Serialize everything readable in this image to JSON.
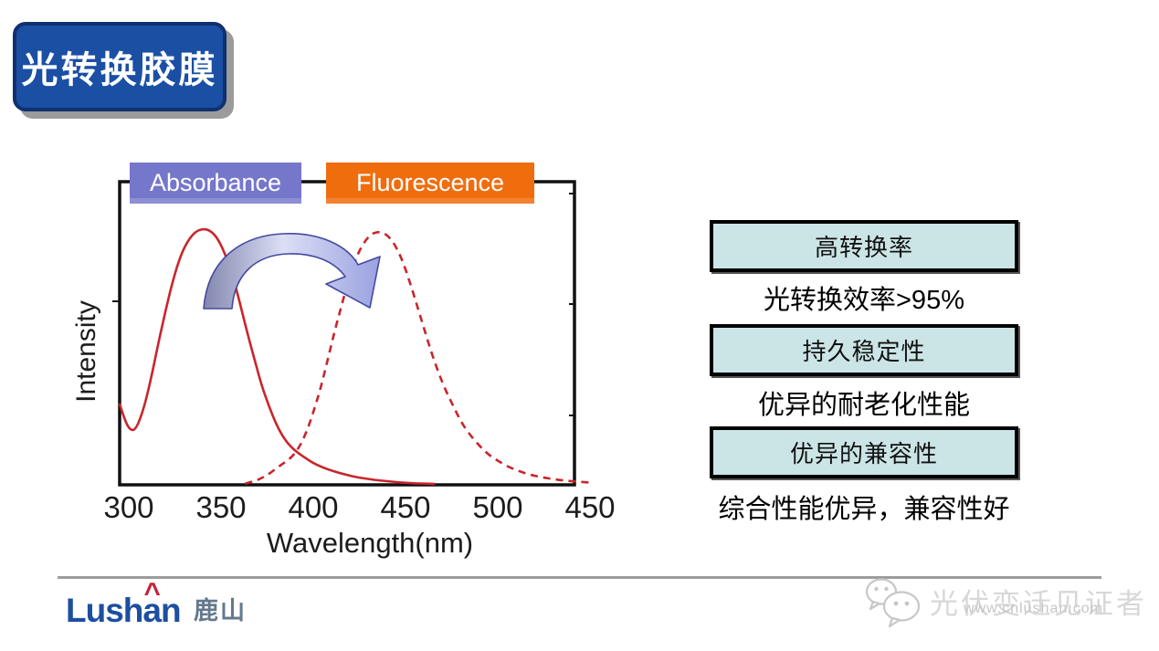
{
  "slide": {
    "title_badge": "光转换胶膜"
  },
  "chart_data": {
    "type": "line",
    "title": "",
    "xlabel": "Wavelength(nm)",
    "ylabel": "Intensity",
    "xticks": [
      "300",
      "350",
      "400",
      "450",
      "500",
      "450"
    ],
    "x_axis_note": "ticks evenly spaced, 50 nm apart starting at 300 nm; last printed label reads 450",
    "ylim": [
      0,
      1
    ],
    "grid": false,
    "legend_position": "top, overlapping frame",
    "legend": [
      {
        "label": "Absorbance",
        "bg": "#7577cb",
        "text": "#ffffff"
      },
      {
        "label": "Fluorescence",
        "bg": "#f06d0d",
        "text": "#ffffff"
      }
    ],
    "curve_color": "#c9252b",
    "series": [
      {
        "name": "Absorbance",
        "style": "solid",
        "points": [
          [
            295,
            0.27
          ],
          [
            298,
            0.21
          ],
          [
            301,
            0.18
          ],
          [
            304,
            0.185
          ],
          [
            308,
            0.25
          ],
          [
            312,
            0.35
          ],
          [
            316,
            0.47
          ],
          [
            320,
            0.58
          ],
          [
            324,
            0.68
          ],
          [
            328,
            0.76
          ],
          [
            332,
            0.81
          ],
          [
            336,
            0.84
          ],
          [
            340,
            0.85
          ],
          [
            344,
            0.845
          ],
          [
            348,
            0.82
          ],
          [
            352,
            0.77
          ],
          [
            356,
            0.7
          ],
          [
            360,
            0.61
          ],
          [
            364,
            0.51
          ],
          [
            368,
            0.42
          ],
          [
            372,
            0.33
          ],
          [
            376,
            0.26
          ],
          [
            380,
            0.2
          ],
          [
            384,
            0.155
          ],
          [
            388,
            0.125
          ],
          [
            392,
            0.105
          ],
          [
            396,
            0.088
          ],
          [
            400,
            0.072
          ],
          [
            405,
            0.058
          ],
          [
            410,
            0.047
          ],
          [
            415,
            0.038
          ],
          [
            420,
            0.03
          ],
          [
            425,
            0.024
          ],
          [
            430,
            0.019
          ],
          [
            435,
            0.015
          ],
          [
            440,
            0.012
          ],
          [
            445,
            0.009
          ],
          [
            450,
            0.007
          ],
          [
            455,
            0.005
          ],
          [
            460,
            0.004
          ],
          [
            466,
            0.003
          ]
        ]
      },
      {
        "name": "Fluorescence",
        "style": "dashed",
        "points": [
          [
            363,
            0.004
          ],
          [
            368,
            0.012
          ],
          [
            372,
            0.022
          ],
          [
            376,
            0.036
          ],
          [
            380,
            0.055
          ],
          [
            384,
            0.072
          ],
          [
            388,
            0.09
          ],
          [
            392,
            0.12
          ],
          [
            396,
            0.17
          ],
          [
            400,
            0.24
          ],
          [
            404,
            0.32
          ],
          [
            408,
            0.42
          ],
          [
            412,
            0.52
          ],
          [
            416,
            0.61
          ],
          [
            420,
            0.7
          ],
          [
            424,
            0.765
          ],
          [
            428,
            0.81
          ],
          [
            432,
            0.835
          ],
          [
            436,
            0.84
          ],
          [
            440,
            0.83
          ],
          [
            444,
            0.8
          ],
          [
            448,
            0.75
          ],
          [
            452,
            0.68
          ],
          [
            456,
            0.6
          ],
          [
            460,
            0.52
          ],
          [
            464,
            0.44
          ],
          [
            468,
            0.37
          ],
          [
            472,
            0.31
          ],
          [
            476,
            0.26
          ],
          [
            480,
            0.21
          ],
          [
            485,
            0.165
          ],
          [
            490,
            0.13
          ],
          [
            495,
            0.1
          ],
          [
            500,
            0.08
          ],
          [
            505,
            0.062
          ],
          [
            510,
            0.049
          ],
          [
            515,
            0.038
          ],
          [
            520,
            0.03
          ],
          [
            525,
            0.024
          ],
          [
            530,
            0.019
          ],
          [
            535,
            0.015
          ],
          [
            540,
            0.012
          ],
          [
            546,
            0.009
          ],
          [
            552,
            0.007
          ]
        ]
      }
    ],
    "annotation": "curved block arrow from absorbance peak (~345 nm) to fluorescence peak (~440 nm)"
  },
  "features": [
    {
      "title": "高转换率",
      "caption": "光转换效率>95%"
    },
    {
      "title": "持久稳定性",
      "caption": "优异的耐老化性能"
    },
    {
      "title": "优异的兼容性",
      "caption": "综合性能优异，兼容性好"
    }
  ],
  "footer": {
    "logo_latin_1": "Lush",
    "logo_latin_a": "a",
    "logo_caret": "^",
    "logo_latin_2": "n",
    "logo_cn": "鹿山",
    "tagline": "光伏变迁见证者",
    "watermark": "www.cnlushan.com"
  },
  "colors": {
    "badge_fill": "#1a4fa4",
    "badge_border": "#10306f",
    "badge_shadow": "#9b9b9b",
    "feature_box_fill": "#cbe5e7",
    "feature_box_border": "#000000",
    "arrow_dark": "#8387ae",
    "arrow_light": "#dcdff5",
    "arrow_mid": "#9aa1e0",
    "logo_blue": "#1c4fa0",
    "logo_caret_red": "#c2253c",
    "logo_gray": "#64798e",
    "divider_gray": "#9c9c9c"
  }
}
